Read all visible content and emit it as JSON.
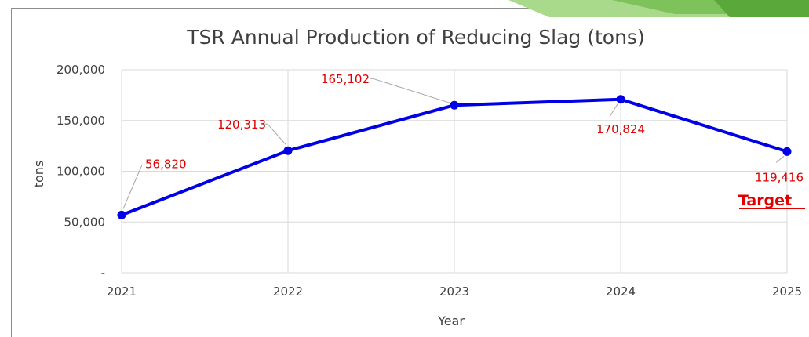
{
  "chart_data": {
    "type": "line",
    "title": "TSR  Annual Production of Reducing Slag (tons)",
    "xlabel": "Year",
    "ylabel": "tons",
    "categories": [
      "2021",
      "2022",
      "2023",
      "2024",
      "2025"
    ],
    "values": [
      56820,
      120313,
      165102,
      170824,
      119416
    ],
    "data_labels": [
      "56,820",
      "120,313",
      "165,102",
      "170,824",
      "119,416"
    ],
    "ylim": [
      0,
      200000
    ],
    "y_ticks": [
      0,
      50000,
      100000,
      150000,
      200000
    ],
    "y_tick_labels": [
      "-",
      "50,000",
      "100,000",
      "150,000",
      "200,000"
    ],
    "grid": true,
    "legend": "none",
    "annotation": "Target",
    "colors": {
      "line": "#0000e6",
      "label": "#e00000",
      "grid": "#d9d9d9",
      "text": "#404040"
    }
  }
}
